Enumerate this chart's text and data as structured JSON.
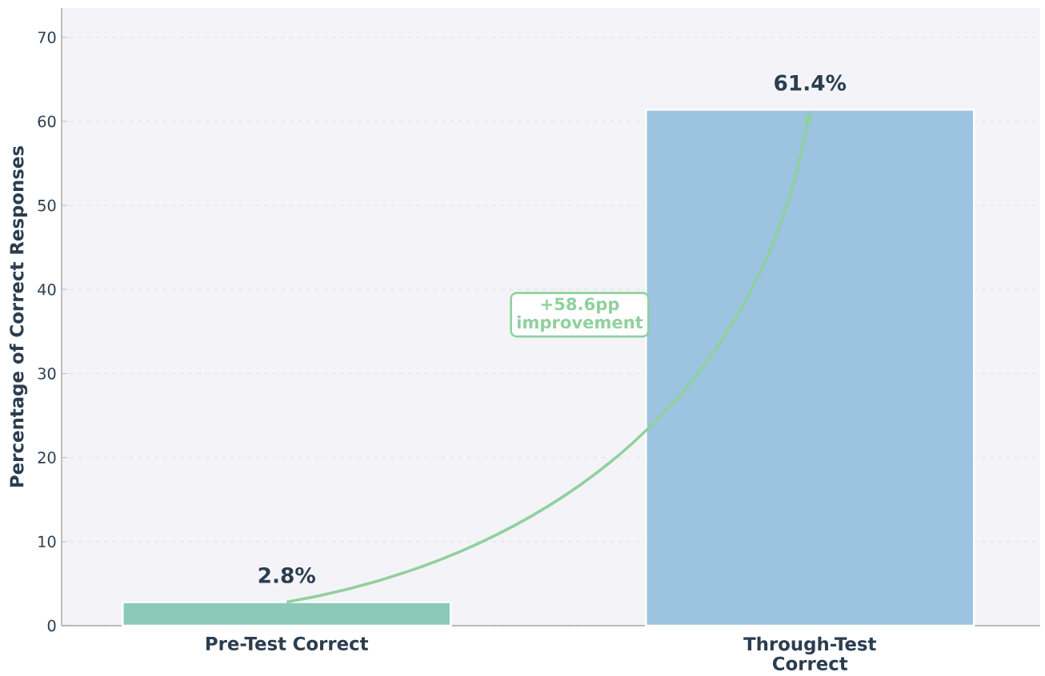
{
  "chart_data": {
    "type": "bar",
    "ylabel": "Percentage of Correct Responses",
    "categories": [
      "Pre-Test Correct",
      "Through-Test Correct"
    ],
    "values": [
      2.8,
      61.4
    ],
    "colors": [
      "#8cc9b8",
      "#9cc3e0"
    ],
    "value_labels": [
      "2.8%",
      "61.4%"
    ],
    "annotations": [
      "+58.6pp improvement"
    ],
    "ylim": [
      0,
      73.5
    ],
    "yticks": [
      0,
      10,
      20,
      30,
      40,
      50,
      60,
      70
    ],
    "grid": "y"
  }
}
